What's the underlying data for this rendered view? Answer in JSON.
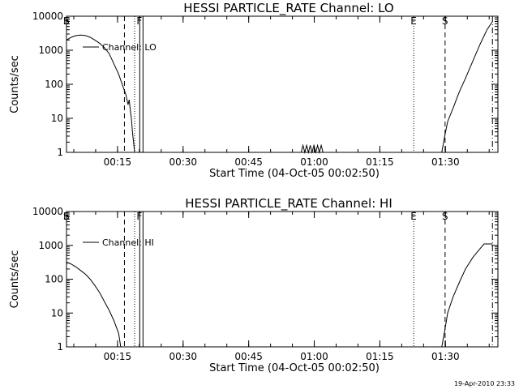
{
  "stamp": "19-Apr-2010 23:33",
  "chart_data": [
    {
      "type": "line",
      "title": "HESSI PARTICLE_RATE Channel: LO",
      "xlabel": "Start Time (04-Oct-05 00:02:50)",
      "ylabel": "Counts/sec",
      "yscale": "log",
      "xlim": [
        "00:03:20",
        "01:42:00"
      ],
      "ylim": [
        1,
        10000
      ],
      "x_tick_labels": [
        "00:15",
        "00:30",
        "00:45",
        "01:00",
        "01:15",
        "01:30"
      ],
      "y_tick_labels": [
        "1",
        "10",
        "100",
        "1000",
        "10000"
      ],
      "legend_label": "Channel: LO",
      "legend_position": "top-left",
      "markers": [
        {
          "label": "E",
          "time": "00:03:20",
          "style": "dotted"
        },
        {
          "label": "S",
          "time": "00:03:20",
          "style": "dashed"
        },
        {
          "label": "",
          "time": "00:16:35",
          "style": "dashed"
        },
        {
          "label": "",
          "time": "00:18:55",
          "style": "dotted"
        },
        {
          "label": "F",
          "time": "00:20:05",
          "style": "solid"
        },
        {
          "label": "",
          "time": "00:20:50",
          "style": "solid"
        },
        {
          "label": "E",
          "time": "01:22:45",
          "style": "dotted"
        },
        {
          "label": "S",
          "time": "01:29:55",
          "style": "dashed"
        },
        {
          "label": "",
          "time": "01:40:45",
          "style": "dashdot"
        }
      ],
      "series": [
        {
          "name": "Channel: LO",
          "segments": [
            [
              [
                "00:03:20",
                2000
              ],
              [
                "00:04:25",
                2400
              ],
              [
                "00:05:30",
                2700
              ],
              [
                "00:06:35",
                2800
              ],
              [
                "00:07:40",
                2700
              ],
              [
                "00:08:45",
                2400
              ],
              [
                "00:09:50",
                2000
              ],
              [
                "00:10:55",
                1600
              ],
              [
                "00:12:00",
                1200
              ],
              [
                "00:13:05",
                800
              ],
              [
                "00:14:10",
                400
              ],
              [
                "00:15:15",
                200
              ],
              [
                "00:16:20",
                80
              ],
              [
                "00:16:55",
                50
              ],
              [
                "00:17:25",
                25
              ],
              [
                "00:17:40",
                35
              ],
              [
                "00:17:55",
                18
              ],
              [
                "00:18:10",
                10
              ],
              [
                "00:18:25",
                4
              ],
              [
                "00:18:40",
                2
              ],
              [
                "00:18:55",
                1
              ]
            ],
            [
              [
                "00:57:00",
                1
              ],
              [
                "00:57:25",
                1.6
              ],
              [
                "00:57:50",
                1
              ],
              [
                "00:58:15",
                1.6
              ],
              [
                "00:58:40",
                1
              ],
              [
                "00:59:05",
                1.6
              ],
              [
                "00:59:30",
                1
              ],
              [
                "00:59:55",
                1.6
              ],
              [
                "01:00:20",
                1
              ],
              [
                "01:00:45",
                1.6
              ],
              [
                "01:01:10",
                1
              ],
              [
                "01:01:35",
                1.6
              ],
              [
                "01:02:00",
                1
              ]
            ],
            [
              [
                "01:29:10",
                1
              ],
              [
                "01:29:50",
                3
              ],
              [
                "01:30:30",
                8
              ],
              [
                "01:31:45",
                20
              ],
              [
                "01:33:10",
                60
              ],
              [
                "01:34:35",
                150
              ],
              [
                "01:36:20",
                500
              ],
              [
                "01:37:55",
                1500
              ],
              [
                "01:39:30",
                4000
              ],
              [
                "01:40:45",
                7000
              ]
            ]
          ]
        }
      ]
    },
    {
      "type": "line",
      "title": "HESSI PARTICLE_RATE Channel: HI",
      "xlabel": "Start Time (04-Oct-05 00:02:50)",
      "ylabel": "Counts/sec",
      "yscale": "log",
      "xlim": [
        "00:03:20",
        "01:42:00"
      ],
      "ylim": [
        1,
        10000
      ],
      "x_tick_labels": [
        "00:15",
        "00:30",
        "00:45",
        "01:00",
        "01:15",
        "01:30"
      ],
      "y_tick_labels": [
        "1",
        "10",
        "100",
        "1000",
        "10000"
      ],
      "legend_label": "Channel: HI",
      "legend_position": "top-left",
      "markers": [
        {
          "label": "E",
          "time": "00:03:20",
          "style": "dotted"
        },
        {
          "label": "S",
          "time": "00:03:20",
          "style": "dashed"
        },
        {
          "label": "",
          "time": "00:16:35",
          "style": "dashed"
        },
        {
          "label": "",
          "time": "00:18:55",
          "style": "dotted"
        },
        {
          "label": "F",
          "time": "00:20:05",
          "style": "solid"
        },
        {
          "label": "",
          "time": "00:20:50",
          "style": "solid"
        },
        {
          "label": "E",
          "time": "01:22:45",
          "style": "dotted"
        },
        {
          "label": "S",
          "time": "01:29:55",
          "style": "dashed"
        },
        {
          "label": "",
          "time": "01:40:45",
          "style": "dashdot"
        }
      ],
      "series": [
        {
          "name": "Channel: HI",
          "segments": [
            [
              [
                "00:03:20",
                320
              ],
              [
                "00:04:25",
                280
              ],
              [
                "00:05:30",
                230
              ],
              [
                "00:06:35",
                180
              ],
              [
                "00:07:40",
                140
              ],
              [
                "00:08:45",
                100
              ],
              [
                "00:09:50",
                65
              ],
              [
                "00:10:55",
                40
              ],
              [
                "00:12:00",
                22
              ],
              [
                "00:13:05",
                12
              ],
              [
                "00:14:10",
                6
              ],
              [
                "00:15:15",
                2.5
              ],
              [
                "00:15:45",
                1
              ]
            ],
            [
              [
                "01:29:10",
                1
              ],
              [
                "01:29:50",
                3
              ],
              [
                "01:30:30",
                10
              ],
              [
                "01:31:45",
                30
              ],
              [
                "01:33:10",
                80
              ],
              [
                "01:34:35",
                200
              ],
              [
                "01:36:20",
                450
              ],
              [
                "01:37:55",
                800
              ],
              [
                "01:38:50",
                1100
              ],
              [
                "01:40:45",
                1100
              ]
            ]
          ]
        }
      ]
    }
  ]
}
